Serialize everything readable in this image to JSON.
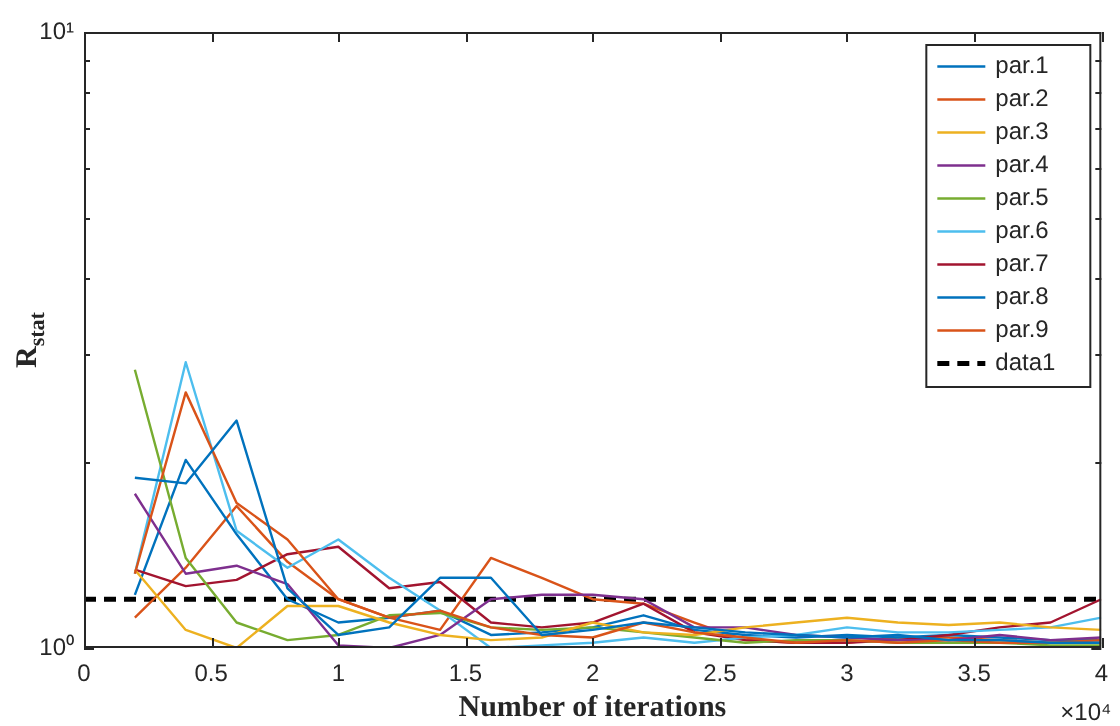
{
  "chart_data": {
    "type": "line",
    "xlabel": "Number of iterations",
    "ylabel": "R$_{stat}$",
    "x": [
      0.2,
      0.4,
      0.6,
      0.8,
      1.0,
      1.2,
      1.4,
      1.6,
      1.8,
      2.0,
      2.2,
      2.4,
      2.6,
      2.8,
      3.0,
      3.2,
      3.4,
      3.6,
      3.8,
      4.0
    ],
    "series": [
      {
        "name": "par.1",
        "color": "#0072bd",
        "values": [
          1.89,
          1.85,
          2.34,
          1.25,
          1.05,
          1.08,
          1.3,
          1.3,
          1.05,
          1.07,
          1.1,
          1.08,
          1.06,
          1.05,
          1.04,
          1.05,
          1.03,
          1.03,
          1.02,
          1.02
        ]
      },
      {
        "name": "par.2",
        "color": "#d95319",
        "values": [
          1.32,
          2.6,
          1.72,
          1.5,
          1.2,
          1.12,
          1.15,
          1.08,
          1.05,
          1.04,
          1.1,
          1.06,
          1.04,
          1.02,
          1.03,
          1.02,
          1.03,
          1.02,
          1.02,
          1.03
        ]
      },
      {
        "name": "par.3",
        "color": "#edb120",
        "values": [
          1.34,
          1.07,
          1.0,
          1.17,
          1.17,
          1.1,
          1.05,
          1.03,
          1.04,
          1.1,
          1.06,
          1.05,
          1.08,
          1.1,
          1.12,
          1.1,
          1.09,
          1.1,
          1.08,
          1.07
        ]
      },
      {
        "name": "par.4",
        "color": "#7e2f8e",
        "values": [
          1.78,
          1.32,
          1.36,
          1.27,
          1.01,
          1.0,
          1.05,
          1.2,
          1.22,
          1.22,
          1.2,
          1.08,
          1.08,
          1.05,
          1.04,
          1.03,
          1.03,
          1.05,
          1.03,
          1.04
        ]
      },
      {
        "name": "par.5",
        "color": "#77ac30",
        "values": [
          2.83,
          1.4,
          1.1,
          1.03,
          1.05,
          1.13,
          1.14,
          1.08,
          1.07,
          1.08,
          1.06,
          1.04,
          1.02,
          1.03,
          1.03,
          1.02,
          1.02,
          1.02,
          1.01,
          1.01
        ]
      },
      {
        "name": "par.6",
        "color": "#4dbeee",
        "values": [
          1.32,
          2.91,
          1.55,
          1.35,
          1.5,
          1.3,
          1.15,
          1.0,
          1.01,
          1.02,
          1.04,
          1.02,
          1.04,
          1.05,
          1.08,
          1.06,
          1.06,
          1.07,
          1.08,
          1.12
        ]
      },
      {
        "name": "par.7",
        "color": "#a2142f",
        "values": [
          1.34,
          1.26,
          1.29,
          1.42,
          1.46,
          1.25,
          1.28,
          1.1,
          1.08,
          1.1,
          1.18,
          1.06,
          1.03,
          1.02,
          1.02,
          1.03,
          1.05,
          1.08,
          1.1,
          1.2
        ]
      },
      {
        "name": "par.8",
        "color": "#0072bd",
        "values": [
          1.22,
          2.02,
          1.53,
          1.2,
          1.1,
          1.12,
          1.15,
          1.05,
          1.06,
          1.08,
          1.13,
          1.07,
          1.05,
          1.04,
          1.05,
          1.04,
          1.05,
          1.04,
          1.03,
          1.03
        ]
      },
      {
        "name": "par.9",
        "color": "#d95319",
        "values": [
          1.12,
          1.35,
          1.7,
          1.38,
          1.2,
          1.12,
          1.07,
          1.4,
          1.3,
          1.2,
          1.18,
          1.1,
          1.03,
          1.02,
          1.02,
          1.04,
          1.04,
          1.03,
          1.02,
          1.02
        ]
      },
      {
        "name": "data1",
        "color": "#000000",
        "x": [
          0,
          4
        ],
        "values": [
          1.2,
          1.2
        ],
        "line_style": "dashed"
      }
    ],
    "xlim": [
      0,
      4
    ],
    "xticks": [
      0,
      0.5,
      1,
      1.5,
      2,
      2.5,
      3,
      3.5,
      4
    ],
    "ylim": [
      1,
      10
    ],
    "yticks": [
      {
        "value": 1,
        "label": "10⁰"
      },
      {
        "value": 2,
        "label": null
      },
      {
        "value": 3,
        "label": null
      },
      {
        "value": 4,
        "label": null
      },
      {
        "value": 5,
        "label": null
      },
      {
        "value": 6,
        "label": null
      },
      {
        "value": 7,
        "label": null
      },
      {
        "value": 8,
        "label": null
      },
      {
        "value": 9,
        "label": null
      },
      {
        "value": 10,
        "label": "10¹"
      }
    ],
    "annotations": [
      "×10⁴"
    ],
    "log": true,
    "grid": false,
    "legend": "top right",
    "marker": "none",
    "line_style": "solid"
  }
}
